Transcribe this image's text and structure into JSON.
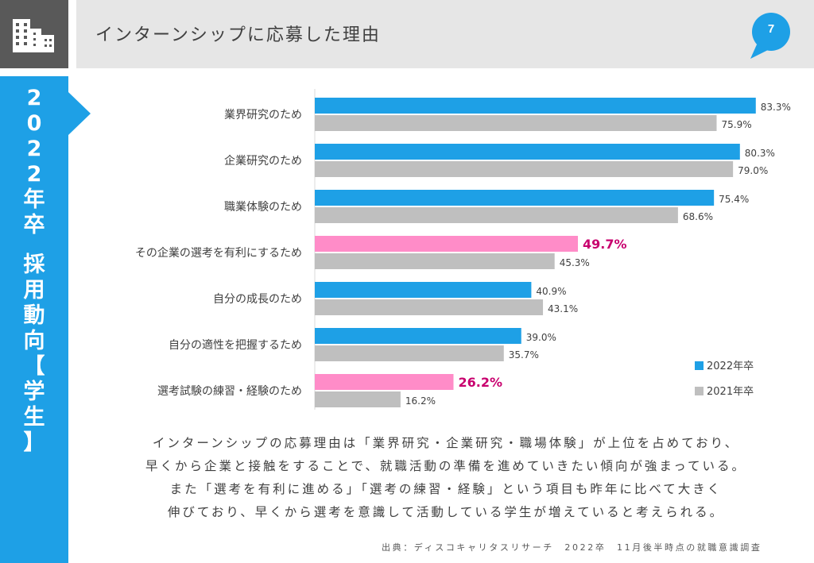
{
  "header": {
    "title": "インターンシップに応募した理由",
    "page_number": "7"
  },
  "sidebar": {
    "chars": [
      "2",
      "0",
      "2",
      "2",
      "年",
      "卒",
      "",
      "採",
      "用",
      "動",
      "向",
      "【",
      "学",
      "生",
      "】"
    ]
  },
  "colors": {
    "accent": "#1ea0e6",
    "series_2022": "#1ea0e6",
    "series_2021": "#bfbfbf",
    "highlight_bar": "#ff8cc8",
    "highlight_text": "#c8006e"
  },
  "chart_data": {
    "type": "bar",
    "orientation": "horizontal",
    "categories": [
      "業界研究のため",
      "企業研究のため",
      "職業体験のため",
      "その企業の選考を有利にするため",
      "自分の成長のため",
      "自分の適性を把握するため",
      "選考試験の練習・経験のため"
    ],
    "series": [
      {
        "name": "2022年卒",
        "values": [
          83.3,
          80.3,
          75.4,
          49.7,
          40.9,
          39.0,
          26.2
        ],
        "labels": [
          "83.3%",
          "80.3%",
          "75.4%",
          "49.7%",
          "40.9%",
          "39.0%",
          "26.2%"
        ]
      },
      {
        "name": "2021年卒",
        "values": [
          75.9,
          79.0,
          68.6,
          45.3,
          43.1,
          35.7,
          16.2
        ],
        "labels": [
          "75.9%",
          "79.0%",
          "68.6%",
          "45.3%",
          "43.1%",
          "35.7%",
          "16.2%"
        ]
      }
    ],
    "highlighted_categories": [
      3,
      6
    ],
    "xlim": [
      0,
      100
    ],
    "legend_position": "bottom-right",
    "grid": false
  },
  "caption": {
    "lines": [
      "インターンシップの応募理由は「業界研究・企業研究・職場体験」が上位を占めており、",
      "早くから企業と接触をすることで、就職活動の準備を進めていきたい傾向が強まっている。",
      "また「選考を有利に進める」「選考の練習・経験」という項目も昨年に比べて大きく",
      "伸びており、早くから選考を意識して活動している学生が増えていると考えられる。"
    ]
  },
  "source": "出典：ディスコキャリタスリサーチ　2022卒　11月後半時点の就職意識調査"
}
